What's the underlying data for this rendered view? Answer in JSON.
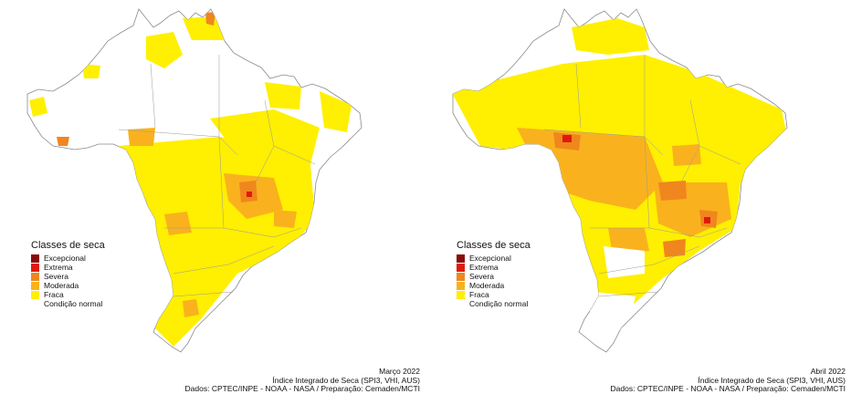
{
  "colors": {
    "excepcional": "#8b0a0a",
    "extrema": "#e01a0a",
    "severa": "#f0861e",
    "moderada": "#f9b21d",
    "fraca": "#ffef00",
    "normal": "#ffffff",
    "border": "#8a8a8a"
  },
  "legend": {
    "title": "Classes de seca",
    "items": [
      {
        "label": "Excepcional",
        "color_key": "excepcional"
      },
      {
        "label": "Extrema",
        "color_key": "extrema"
      },
      {
        "label": "Severa",
        "color_key": "severa"
      },
      {
        "label": "Moderada",
        "color_key": "moderada"
      },
      {
        "label": "Fraca",
        "color_key": "fraca"
      },
      {
        "label": "Condição normal",
        "color_key": "normal"
      }
    ]
  },
  "maps": [
    {
      "month": "Março 2022",
      "index": "Índice Integrado de Seca (SPI3, VHI, AUS)",
      "source": "Dados: CPTEC/INPE - NOAA - NASA / Preparação: Cemaden/MCTI"
    },
    {
      "month": "Abril 2022",
      "index": "Índice Integrado de Seca (SPI3, VHI, AUS)",
      "source": "Dados: CPTEC/INPE - NOAA - NASA / Preparação: Cemaden/MCTI"
    }
  ]
}
